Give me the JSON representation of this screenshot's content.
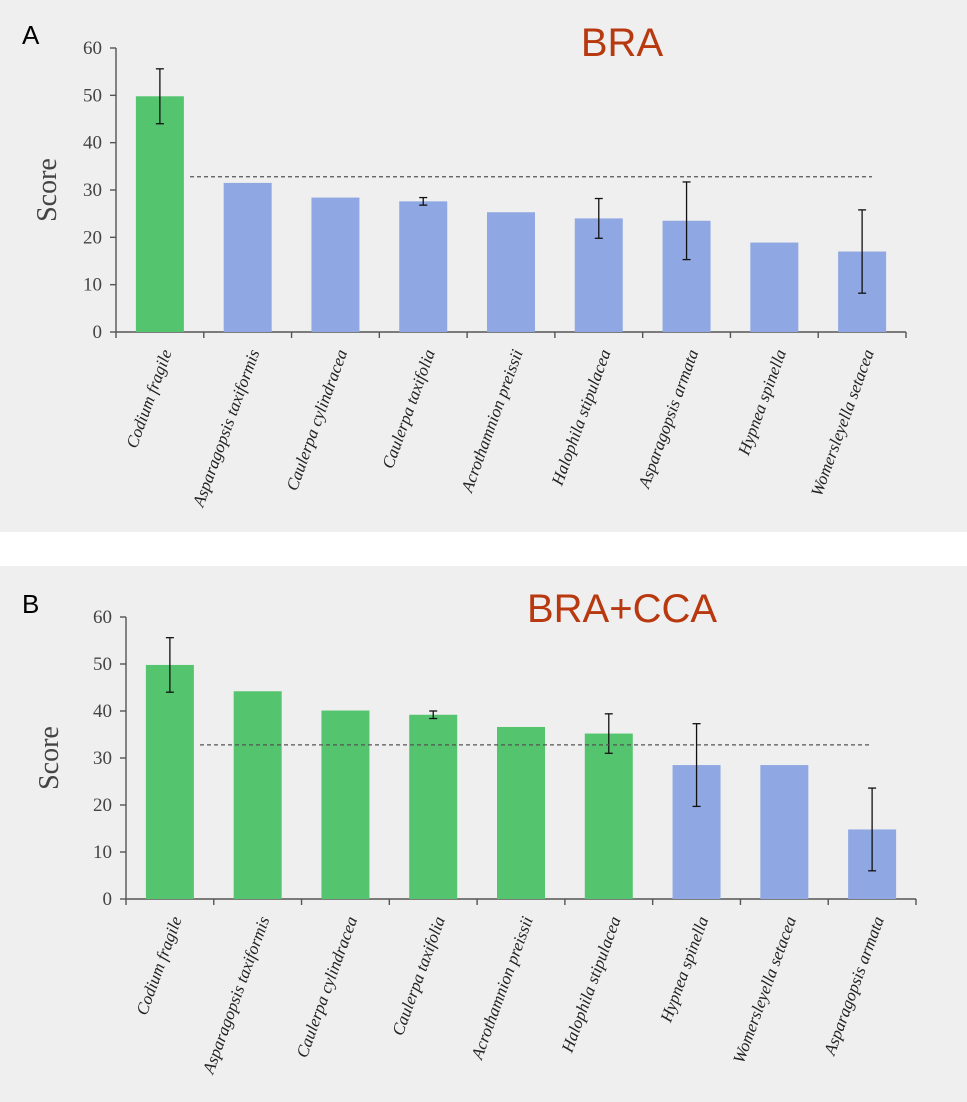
{
  "colors": {
    "above": "#54c46e",
    "below": "#8fa8e3",
    "title": "#b8390f"
  },
  "chart_data": [
    {
      "type": "bar",
      "panel": "A",
      "title": "BRA",
      "ylabel": "Score",
      "xlabel": "",
      "ylim": [
        0,
        60
      ],
      "yticks": [
        "0",
        "10",
        "20",
        "30",
        "40",
        "50",
        "60"
      ],
      "threshold": 32.8,
      "grid": false,
      "categories": [
        "Codium fragile",
        "Asparagopsis taxiformis",
        "Caulerpa cylindracea",
        "Caulerpa taxifolia",
        "Acrothamnion preissii",
        "Halophila stipulacea",
        "Asparagopsis armata",
        "Hypnea spinella",
        "Womersleyella setacea"
      ],
      "values": [
        49.8,
        31.5,
        28.4,
        27.6,
        25.3,
        24.0,
        23.5,
        18.9,
        17.0
      ],
      "error": [
        5.8,
        null,
        null,
        0.8,
        null,
        4.2,
        8.2,
        null,
        8.8
      ],
      "bar_color": [
        "above",
        "below",
        "below",
        "below",
        "below",
        "below",
        "below",
        "below",
        "below"
      ]
    },
    {
      "type": "bar",
      "panel": "B",
      "title": "BRA+CCA",
      "ylabel": "Score",
      "xlabel": "",
      "ylim": [
        0,
        60
      ],
      "yticks": [
        "0",
        "10",
        "20",
        "30",
        "40",
        "50",
        "60"
      ],
      "threshold": 32.8,
      "grid": false,
      "categories": [
        "Codium fragile",
        "Asparagopsis taxiformis",
        "Caulerpa cylindracea",
        "Caulerpa taxifolia",
        "Acrothamnion preissii",
        "Halophila stipulacea",
        "Hypnea spinella",
        "Womersleyella setacea",
        "Asparagopsis armata"
      ],
      "values": [
        49.8,
        44.2,
        40.1,
        39.2,
        36.6,
        35.2,
        28.5,
        28.5,
        14.8
      ],
      "error": [
        5.8,
        null,
        null,
        0.8,
        null,
        4.2,
        8.8,
        null,
        8.8
      ],
      "bar_color": [
        "above",
        "above",
        "above",
        "above",
        "above",
        "above",
        "below",
        "below",
        "below"
      ]
    }
  ]
}
